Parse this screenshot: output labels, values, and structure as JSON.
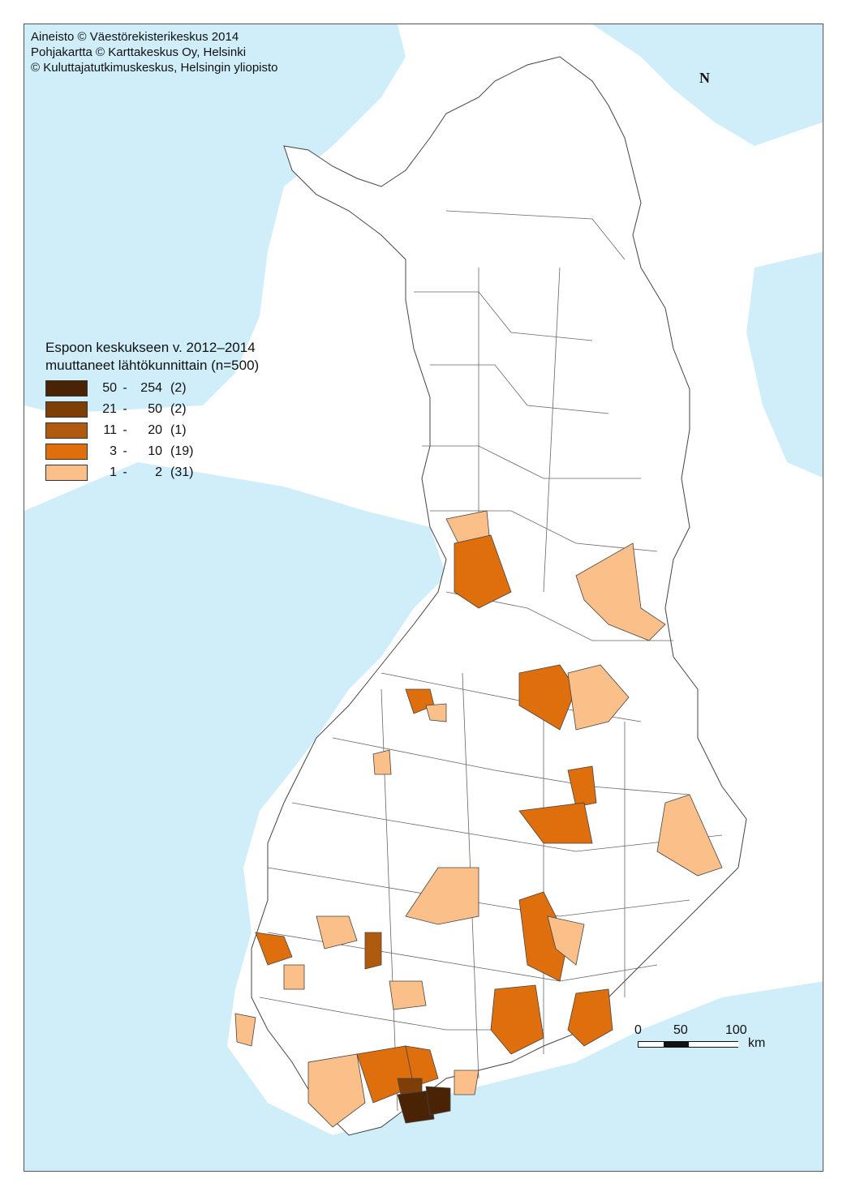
{
  "map": {
    "credits": [
      "Aineisto © Väestörekisterikeskus 2014",
      "Pohjakartta © Karttakeskus Oy, Helsinki",
      "© Kuluttajatutkimuskeskus, Helsingin yliopisto"
    ],
    "north_arrow": "N",
    "legend": {
      "title_line1": "Espoon keskukseen v. 2012–2014",
      "title_line2": "muuttaneet lähtökunnittain (n=500)",
      "classes": [
        {
          "lo": "50",
          "hi": "254",
          "count": "(2)",
          "color": "#4a2204"
        },
        {
          "lo": "21",
          "hi": "50",
          "count": "(2)",
          "color": "#7e3e08"
        },
        {
          "lo": "11",
          "hi": "20",
          "count": "(1)",
          "color": "#b05a10"
        },
        {
          "lo": "3",
          "hi": "10",
          "count": "(19)",
          "color": "#de6f0c"
        },
        {
          "lo": "1",
          "hi": "2",
          "count": "(31)",
          "color": "#fbc08a"
        }
      ]
    },
    "scale": {
      "label_0": "0",
      "label_50": "50",
      "label_100": "100",
      "unit": "km"
    },
    "colors": {
      "water": "#cfeefa",
      "land": "#ffffff",
      "border": "#444444"
    }
  }
}
